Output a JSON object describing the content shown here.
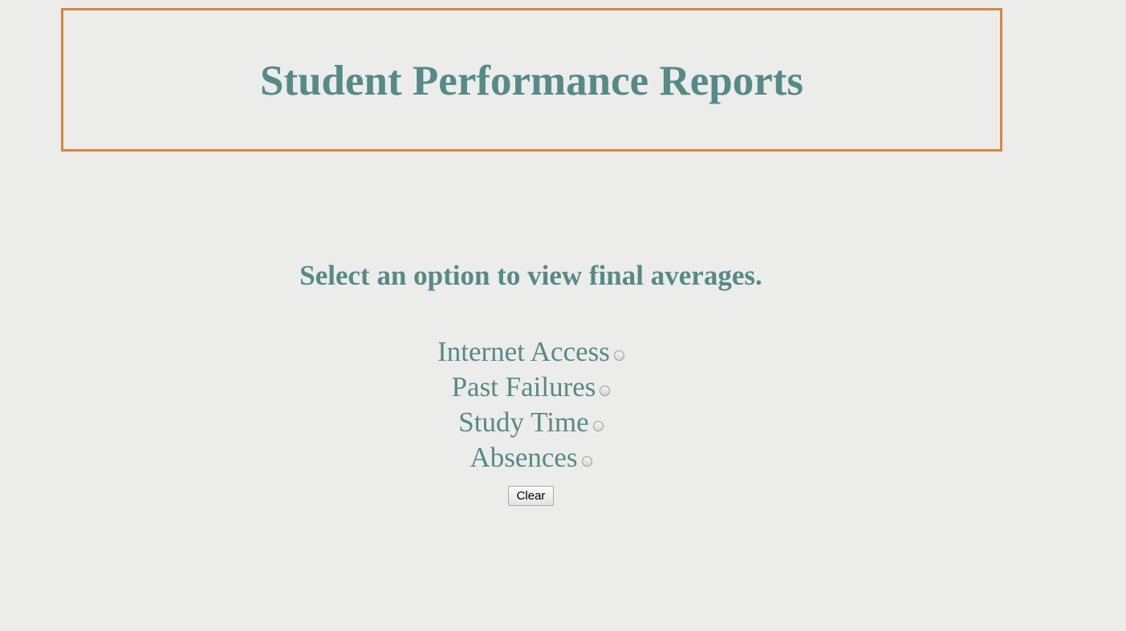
{
  "header": {
    "title": "Student Performance Reports"
  },
  "main": {
    "instruction": "Select an option to view final averages.",
    "options": [
      {
        "label": "Internet Access",
        "selected": false
      },
      {
        "label": "Past Failures",
        "selected": false
      },
      {
        "label": "Study Time",
        "selected": false
      },
      {
        "label": "Absences",
        "selected": false
      }
    ],
    "clear_label": "Clear"
  },
  "colors": {
    "background": "#ececea",
    "title_border": "#d4883f",
    "text": "#568a87"
  }
}
